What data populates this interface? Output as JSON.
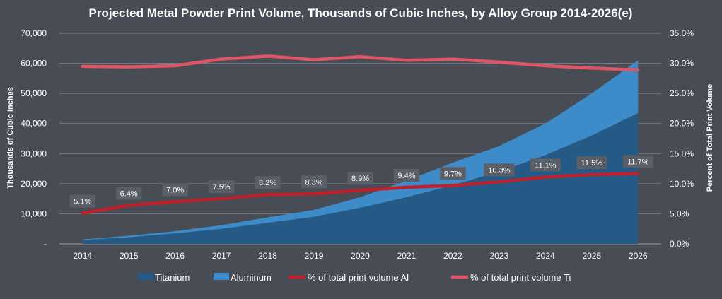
{
  "chart_data": {
    "type": "area",
    "title": "Projected Metal Powder Print Volume, Thousands of Cubic Inches, by Alloy Group 2014-2026(e)",
    "ylabel": "Thousands of Cubic Inches",
    "y2label": "Percent of Total Print Volume",
    "categories": [
      "2014",
      "2015",
      "2016",
      "2017",
      "2018",
      "2019",
      "2020",
      "2021",
      "2022",
      "2023",
      "2024",
      "2025",
      "2026"
    ],
    "ylim": [
      0,
      70000
    ],
    "y2lim": [
      0,
      0.35
    ],
    "y_ticks": [
      "-",
      "10,000",
      "20,000",
      "30,000",
      "40,000",
      "50,000",
      "60,000",
      "70,000"
    ],
    "y2_ticks": [
      "0.0%",
      "5.0%",
      "10.0%",
      "15.0%",
      "20.0%",
      "25.0%",
      "30.0%",
      "35.0%"
    ],
    "grid": true,
    "legend_position": "bottom",
    "series": [
      {
        "name": "Titanium",
        "kind": "area",
        "axis": "left",
        "color": "#255a86",
        "values": [
          1300,
          2200,
          3500,
          5000,
          7000,
          9000,
          12000,
          15500,
          19500,
          24000,
          29500,
          36000,
          43500
        ]
      },
      {
        "name": "Aluminum",
        "kind": "area",
        "axis": "left",
        "stacked": true,
        "color": "#3d8bc8",
        "values": [
          200,
          500,
          700,
          1200,
          1800,
          2300,
          3500,
          5500,
          7500,
          8500,
          10500,
          14000,
          17500
        ]
      },
      {
        "name": "% of total print volume Al",
        "kind": "line",
        "axis": "right",
        "color": "#c0202a",
        "values": [
          0.051,
          0.064,
          0.07,
          0.075,
          0.082,
          0.083,
          0.089,
          0.094,
          0.097,
          0.103,
          0.111,
          0.115,
          0.117
        ],
        "labels": [
          "5.1%",
          "6.4%",
          "7.0%",
          "7.5%",
          "8.2%",
          "8.3%",
          "8.9%",
          "9.4%",
          "9.7%",
          "10.3%",
          "11.1%",
          "11.5%",
          "11.7%"
        ]
      },
      {
        "name": "% of total print volume Ti",
        "kind": "line",
        "axis": "right",
        "color": "#e05563",
        "values": [
          0.295,
          0.294,
          0.296,
          0.307,
          0.312,
          0.306,
          0.311,
          0.305,
          0.307,
          0.302,
          0.296,
          0.292,
          0.289
        ]
      }
    ]
  }
}
